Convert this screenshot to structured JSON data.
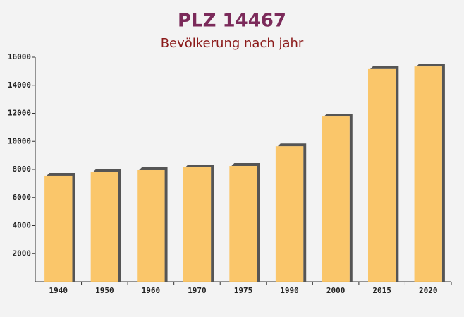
{
  "chart_data": {
    "type": "bar",
    "title": "PLZ 14467",
    "subtitle": "Bevölkerung nach jahr",
    "categories": [
      "1940",
      "1950",
      "1960",
      "1970",
      "1975",
      "1990",
      "2000",
      "2015",
      "2020"
    ],
    "values": [
      7550,
      7800,
      7950,
      8150,
      8250,
      9650,
      11770,
      15150,
      15340
    ],
    "color": "#fbc25e",
    "ylim": [
      0,
      16000
    ],
    "yticks": [
      2000,
      4000,
      6000,
      8000,
      10000,
      12000,
      14000,
      16000
    ],
    "grid": false
  }
}
